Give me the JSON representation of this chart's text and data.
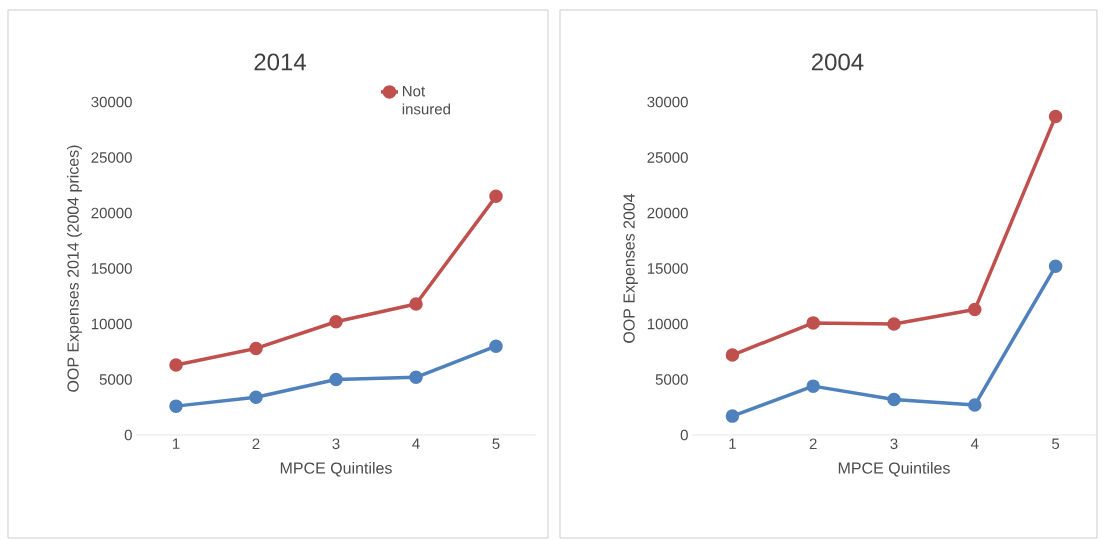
{
  "chart_data": [
    {
      "type": "line",
      "title": "2014",
      "xlabel": "MPCE Quintiles",
      "ylabel": "OOP Expenses 2014 (2004 prices)",
      "categories": [
        "1",
        "2",
        "3",
        "4",
        "5"
      ],
      "series": [
        {
          "color": "#4f81bd",
          "values": [
            2600,
            3400,
            5000,
            5200,
            8000
          ]
        },
        {
          "name": "Not insured",
          "color": "#c0504d",
          "values": [
            6300,
            7800,
            10200,
            11800,
            21500
          ]
        }
      ],
      "ylim": [
        0,
        30000
      ],
      "yticks": [
        0,
        5000,
        10000,
        15000,
        20000,
        25000,
        30000
      ],
      "marker": "circle",
      "line_style": "solid",
      "legend": "top right"
    },
    {
      "type": "line",
      "title": "2004",
      "xlabel": "MPCE Quintiles",
      "ylabel": "OOP Expenses 2004",
      "categories": [
        "1",
        "2",
        "3",
        "4",
        "5"
      ],
      "series": [
        {
          "color": "#4f81bd",
          "values": [
            1700,
            4400,
            3200,
            2700,
            15200
          ]
        },
        {
          "color": "#c0504d",
          "values": [
            7200,
            10100,
            10000,
            11300,
            28700
          ]
        }
      ],
      "ylim": [
        0,
        30000
      ],
      "yticks": [
        0,
        5000,
        10000,
        15000,
        20000,
        25000,
        30000
      ],
      "marker": "circle",
      "line_style": "solid"
    }
  ]
}
